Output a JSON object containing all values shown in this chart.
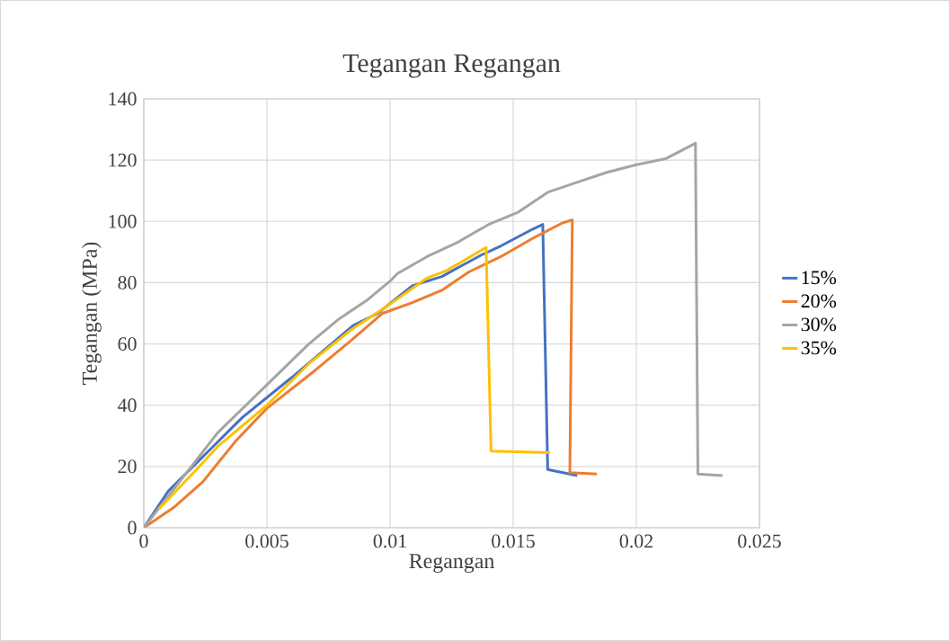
{
  "chart_data": {
    "type": "line",
    "title": "Tegangan Regangan",
    "xlabel": "Regangan",
    "ylabel": "Tegangan (MPa)",
    "xlim": [
      0,
      0.025
    ],
    "xticks": [
      0,
      0.005,
      0.01,
      0.015,
      0.02,
      0.025
    ],
    "ylim": [
      0,
      140
    ],
    "yticks": [
      0,
      20,
      40,
      60,
      80,
      100,
      120,
      140
    ],
    "grid": true,
    "legend": "right",
    "marker": "none",
    "line_style": "solid",
    "series": [
      {
        "name": "15%",
        "color": "#4472c4",
        "x": [
          0,
          0.001,
          0.0025,
          0.004,
          0.006,
          0.0085,
          0.0095,
          0.0109,
          0.0121,
          0.0137,
          0.0145,
          0.0158,
          0.0162,
          0.0164,
          0.0176
        ],
        "values": [
          0,
          12,
          24,
          36,
          49,
          66,
          70,
          79,
          82,
          89,
          92,
          97.5,
          99,
          19,
          17
        ]
      },
      {
        "name": "20%",
        "color": "#ed7d31",
        "x": [
          0,
          0.0012,
          0.0024,
          0.0037,
          0.005,
          0.0069,
          0.0084,
          0.0097,
          0.0109,
          0.0121,
          0.0132,
          0.0145,
          0.0158,
          0.017,
          0.0174,
          0.0173,
          0.0184
        ],
        "values": [
          0,
          6.5,
          15,
          28,
          39,
          51,
          61,
          70,
          73.5,
          77.5,
          83.5,
          88.5,
          94.5,
          99.5,
          100.5,
          18,
          17.5
        ]
      },
      {
        "name": "30%",
        "color": "#a5a5a5",
        "x": [
          0,
          0.003,
          0.0067,
          0.0079,
          0.0091,
          0.01,
          0.0103,
          0.0115,
          0.0127,
          0.014,
          0.0152,
          0.0164,
          0.0175,
          0.0188,
          0.02,
          0.0212,
          0.0224,
          0.0225,
          0.0235
        ],
        "values": [
          0,
          31,
          60,
          68,
          74.5,
          80.5,
          83,
          88.5,
          93,
          99,
          103,
          109.5,
          112.5,
          116,
          118.5,
          120.5,
          125.5,
          17.5,
          17
        ]
      },
      {
        "name": "35%",
        "color": "#ffc000",
        "x": [
          0.0006,
          0.0022,
          0.003,
          0.005,
          0.0067,
          0.0084,
          0.01,
          0.0115,
          0.0123,
          0.0139,
          0.0141,
          0.0165
        ],
        "values": [
          6,
          19.5,
          26.5,
          40,
          53.5,
          64.5,
          73,
          81.5,
          84,
          91.5,
          25,
          24.5
        ]
      }
    ]
  }
}
